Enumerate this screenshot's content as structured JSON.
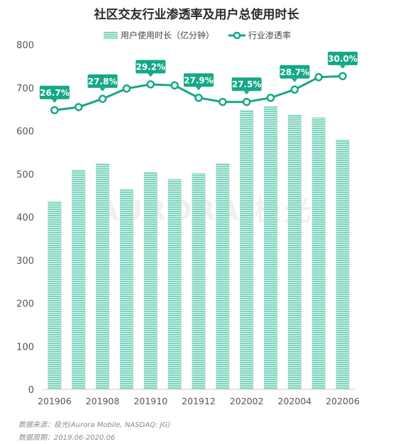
{
  "chart_data": {
    "type": "bar+line",
    "title": "社区交友行业渗透率及用户总使用时长",
    "legend": {
      "bar_label": "用户使用时长（亿分钟）",
      "line_label": "行业渗透率",
      "placement": "top-center"
    },
    "categories": [
      "201906",
      "201907",
      "201908",
      "201909",
      "201910",
      "201911",
      "201912",
      "202001",
      "202002",
      "202003",
      "202004",
      "202005",
      "202006"
    ],
    "x_tick_labels": [
      "201906",
      "201908",
      "201910",
      "201912",
      "202002",
      "202004",
      "202006"
    ],
    "bar_series": {
      "name": "用户使用时长（亿分钟）",
      "values": [
        437,
        510,
        525,
        465,
        504,
        488,
        502,
        525,
        649,
        658,
        637,
        631,
        580
      ]
    },
    "line_series": {
      "name": "行业渗透率",
      "values": [
        26.7,
        27.0,
        27.8,
        28.8,
        29.2,
        29.1,
        27.9,
        27.5,
        27.5,
        27.9,
        28.7,
        29.9,
        30.0
      ],
      "labels": [
        "26.7%",
        null,
        "27.8%",
        null,
        "29.2%",
        null,
        "27.9%",
        null,
        "27.5%",
        null,
        "28.7%",
        null,
        "30.0%"
      ]
    },
    "ylim": [
      0,
      800
    ],
    "y_ticks": [
      0,
      100,
      200,
      300,
      400,
      500,
      600,
      700,
      800
    ],
    "grid": false,
    "colors": {
      "bar": "#7fd3bf",
      "bar_stripe": "#ffffff",
      "line": "#15a887",
      "label_bg": "#15a887",
      "label_text": "#ffffff"
    }
  },
  "watermark": "AURORA 极光",
  "footer": {
    "source": "数据来源：极光(Aurora Mobile, NASDAQ: JG)",
    "period": "数据周期：2019.06-2020.06"
  }
}
